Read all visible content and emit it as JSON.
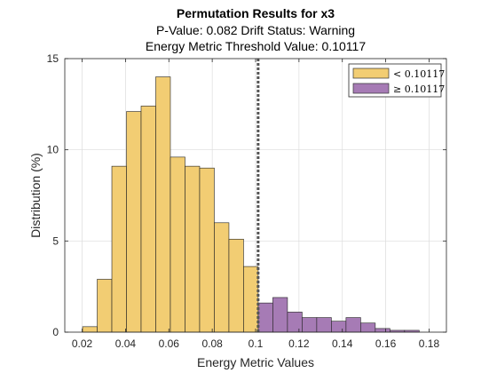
{
  "chart_data": {
    "type": "bar",
    "title": "Permutation Results for x3",
    "subtitle_lines": [
      "P-Value: 0.082 Drift Status: Warning",
      "Energy Metric Threshold Value: 0.10117"
    ],
    "xlabel": "Energy Metric Values",
    "ylabel": "Distribution (%)",
    "xlim": [
      0.012,
      0.188
    ],
    "ylim": [
      0,
      15
    ],
    "xticks": [
      "0.02",
      "0.04",
      "0.06",
      "0.08",
      "0.1",
      "0.12",
      "0.14",
      "0.16",
      "0.18"
    ],
    "yticks": [
      "0",
      "5",
      "10",
      "15"
    ],
    "grid": true,
    "bin_width": 0.00675,
    "threshold": 0.10117,
    "legend_position": "top-right",
    "colors": {
      "below": "#f2cd73",
      "above": "#a67bb5",
      "threshold_line": "#555555"
    },
    "series": [
      {
        "name": "< 0.10117",
        "bins": [
          {
            "x0": 0.0202,
            "value": 0.3
          },
          {
            "x0": 0.02695,
            "value": 2.9
          },
          {
            "x0": 0.0337,
            "value": 9.1
          },
          {
            "x0": 0.04045,
            "value": 12.1
          },
          {
            "x0": 0.0472,
            "value": 12.4
          },
          {
            "x0": 0.05395,
            "value": 14.0
          },
          {
            "x0": 0.0607,
            "value": 9.6
          },
          {
            "x0": 0.06745,
            "value": 9.1
          },
          {
            "x0": 0.0742,
            "value": 9.0
          },
          {
            "x0": 0.08095,
            "value": 6.0
          },
          {
            "x0": 0.0877,
            "value": 5.1
          },
          {
            "x0": 0.09445,
            "value": 3.6
          }
        ]
      },
      {
        "name": "≥ 0.10117",
        "bins": [
          {
            "x0": 0.1012,
            "value": 1.6
          },
          {
            "x0": 0.10795,
            "value": 1.9
          },
          {
            "x0": 0.1147,
            "value": 1.1
          },
          {
            "x0": 0.12145,
            "value": 0.8
          },
          {
            "x0": 0.1282,
            "value": 0.8
          },
          {
            "x0": 0.13495,
            "value": 0.6
          },
          {
            "x0": 0.1417,
            "value": 0.8
          },
          {
            "x0": 0.14845,
            "value": 0.5
          },
          {
            "x0": 0.1552,
            "value": 0.2
          },
          {
            "x0": 0.16195,
            "value": 0.1
          },
          {
            "x0": 0.1687,
            "value": 0.1
          }
        ]
      }
    ]
  }
}
